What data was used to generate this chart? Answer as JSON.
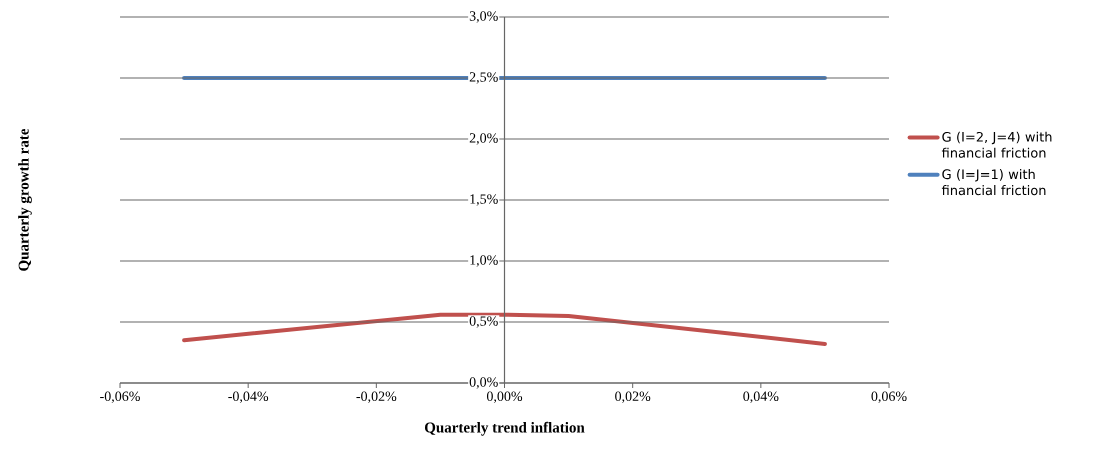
{
  "chart_data": {
    "type": "line",
    "xlabel": "Quarterly trend inflation",
    "ylabel": "Quarterly growth rate",
    "series": [
      {
        "name": "G (I=2, J=4) with financial friction",
        "color": "#c0504d",
        "x": [
          -0.05,
          -0.01,
          0,
          0.01,
          0.05
        ],
        "values": [
          0.35,
          0.56,
          0.56,
          0.55,
          0.32
        ]
      },
      {
        "name": "G (I=J=1) with financial friction",
        "color": "#4f81bd",
        "x": [
          -0.05,
          0.05
        ],
        "values": [
          2.5,
          2.5
        ]
      }
    ],
    "xlim": [
      -0.06,
      0.06
    ],
    "ylim": [
      0,
      3
    ],
    "xticks": [
      {
        "value": -0.06,
        "label": "-0,06%"
      },
      {
        "value": -0.04,
        "label": "-0,04%"
      },
      {
        "value": -0.02,
        "label": "-0,02%"
      },
      {
        "value": 0,
        "label": "0,00%"
      },
      {
        "value": 0.02,
        "label": "0,02%"
      },
      {
        "value": 0.04,
        "label": "0,04%"
      },
      {
        "value": 0.06,
        "label": "0,06%"
      }
    ],
    "yticks": [
      {
        "value": 0,
        "label": "0,0%"
      },
      {
        "value": 0.5,
        "label": "0,5%"
      },
      {
        "value": 1,
        "label": "1,0%"
      },
      {
        "value": 1.5,
        "label": "1,5%"
      },
      {
        "value": 2,
        "label": "2,0%"
      },
      {
        "value": 2.5,
        "label": "2,5%"
      },
      {
        "value": 3,
        "label": "3,0%"
      }
    ],
    "grid": "y",
    "legend": "right",
    "marker": "none",
    "line_style": "solid"
  }
}
